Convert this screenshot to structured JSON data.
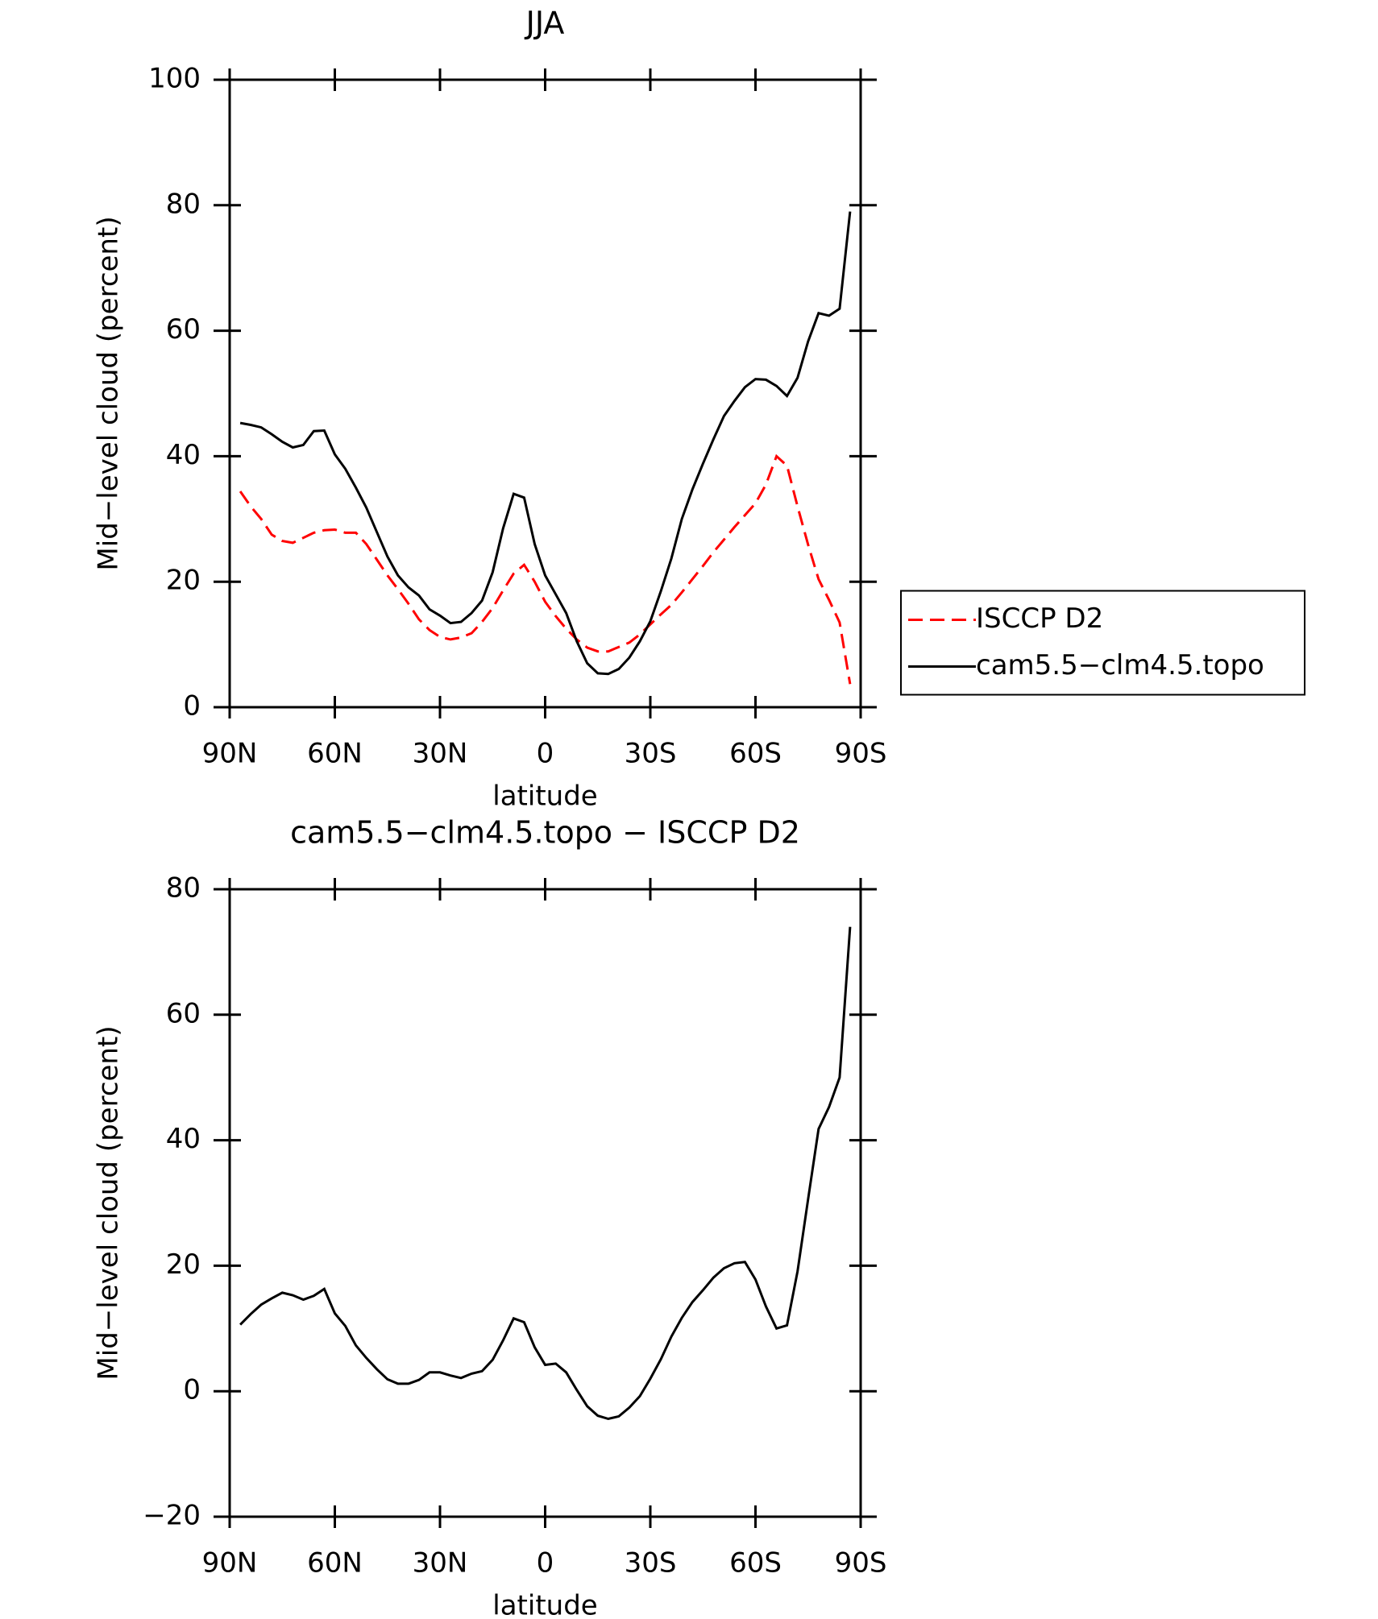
{
  "chart_data": [
    {
      "type": "line",
      "title": "JJA",
      "xlabel": "latitude",
      "ylabel": "Mid−level cloud (percent)",
      "x": [
        87,
        84,
        81,
        78,
        75,
        72,
        69,
        66,
        63,
        60,
        57,
        54,
        51,
        48,
        45,
        42,
        39,
        36,
        33,
        30,
        27,
        24,
        21,
        18,
        15,
        12,
        9,
        6,
        3,
        0,
        -3,
        -6,
        -9,
        -12,
        -15,
        -18,
        -21,
        -24,
        -27,
        -30,
        -33,
        -36,
        -39,
        -42,
        -45,
        -48,
        -51,
        -54,
        -57,
        -60,
        -63,
        -66,
        -69,
        -72,
        -75,
        -78,
        -81,
        -84,
        -87
      ],
      "xlim": [
        90,
        -90
      ],
      "xticks": [
        {
          "value": 90,
          "label": "90N"
        },
        {
          "value": 60,
          "label": "60N"
        },
        {
          "value": 30,
          "label": "30N"
        },
        0,
        {
          "value": -30,
          "label": "30S"
        },
        {
          "value": -60,
          "label": "60S"
        },
        {
          "value": -90,
          "label": "90S"
        }
      ],
      "ylim": [
        0,
        100
      ],
      "yticks": [
        0,
        20,
        40,
        60,
        80,
        100
      ],
      "legend": "right",
      "series": [
        {
          "name": "ISCCP D2",
          "color": "#ff0000",
          "dashed": true,
          "values": [
            34.4,
            32.0,
            30.0,
            27.5,
            26.5,
            26.2,
            27.0,
            27.8,
            28.2,
            28.3,
            27.8,
            27.8,
            26.0,
            23.5,
            21.0,
            18.8,
            16.5,
            14.0,
            12.3,
            11.2,
            10.8,
            11.1,
            11.8,
            13.6,
            15.8,
            18.6,
            21.3,
            22.7,
            20.0,
            16.8,
            14.5,
            12.5,
            10.8,
            9.5,
            8.9,
            8.9,
            9.6,
            10.3,
            11.6,
            13.2,
            14.8,
            16.3,
            18.3,
            20.4,
            22.5,
            24.7,
            26.7,
            28.7,
            30.6,
            32.5,
            35.5,
            40.0,
            38.5,
            32.0,
            25.9,
            20.4,
            17.1,
            13.5,
            3.7
          ]
        },
        {
          "name": "cam5.5−clm4.5.topo",
          "color": "#000000",
          "dashed": false,
          "values": [
            45.3,
            45.0,
            44.6,
            43.5,
            42.3,
            41.4,
            41.8,
            44.0,
            44.1,
            40.3,
            38.0,
            35.0,
            31.8,
            27.9,
            24.0,
            21.0,
            19.1,
            17.8,
            15.6,
            14.6,
            13.4,
            13.6,
            15.0,
            17.0,
            21.5,
            28.5,
            34.0,
            33.4,
            26.0,
            21.0,
            18.0,
            15.0,
            10.5,
            7.0,
            5.4,
            5.3,
            6.1,
            7.9,
            10.5,
            13.7,
            18.5,
            23.7,
            30.0,
            34.7,
            38.8,
            42.7,
            46.4,
            48.8,
            51.0,
            52.3,
            52.2,
            51.2,
            49.6,
            52.5,
            58.3,
            62.8,
            62.4,
            63.5,
            79.0
          ]
        }
      ]
    },
    {
      "type": "line",
      "title": "cam5.5−clm4.5.topo − ISCCP D2",
      "xlabel": "latitude",
      "ylabel": "Mid−level cloud (percent)",
      "x": [
        87,
        84,
        81,
        78,
        75,
        72,
        69,
        66,
        63,
        60,
        57,
        54,
        51,
        48,
        45,
        42,
        39,
        36,
        33,
        30,
        27,
        24,
        21,
        18,
        15,
        12,
        9,
        6,
        3,
        0,
        -3,
        -6,
        -9,
        -12,
        -15,
        -18,
        -21,
        -24,
        -27,
        -30,
        -33,
        -36,
        -39,
        -42,
        -45,
        -48,
        -51,
        -54,
        -57,
        -60,
        -63,
        -66,
        -69,
        -72,
        -75,
        -78,
        -81,
        -84,
        -87
      ],
      "xlim": [
        90,
        -90
      ],
      "xticks": [
        {
          "value": 90,
          "label": "90N"
        },
        {
          "value": 60,
          "label": "60N"
        },
        {
          "value": 30,
          "label": "30N"
        },
        0,
        {
          "value": -30,
          "label": "30S"
        },
        {
          "value": -60,
          "label": "60S"
        },
        {
          "value": -90,
          "label": "90S"
        }
      ],
      "ylim": [
        -20,
        80
      ],
      "yticks": [
        {
          "value": -20,
          "label": "−20"
        },
        0,
        20,
        40,
        60,
        80
      ],
      "series": [
        {
          "color": "#000000",
          "dashed": false,
          "values": [
            10.6,
            12.3,
            13.8,
            14.8,
            15.7,
            15.3,
            14.6,
            15.2,
            16.3,
            12.4,
            10.4,
            7.3,
            5.3,
            3.5,
            1.9,
            1.2,
            1.2,
            1.8,
            3.0,
            3.0,
            2.5,
            2.1,
            2.8,
            3.2,
            5.0,
            8.1,
            11.6,
            11.0,
            7.0,
            4.2,
            4.4,
            3.0,
            0.2,
            -2.4,
            -3.9,
            -4.4,
            -4.0,
            -2.6,
            -0.8,
            2.0,
            5.1,
            8.7,
            11.7,
            14.2,
            16.1,
            18.1,
            19.6,
            20.4,
            20.6,
            17.8,
            13.5,
            10.0,
            10.5,
            19.1,
            30.6,
            41.8,
            45.3,
            50.0,
            74.0
          ]
        }
      ]
    }
  ]
}
